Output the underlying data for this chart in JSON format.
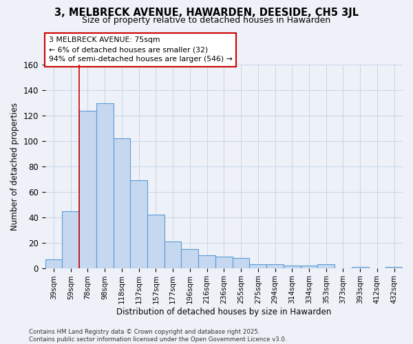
{
  "title": "3, MELBRECK AVENUE, HAWARDEN, DEESIDE, CH5 3JL",
  "subtitle": "Size of property relative to detached houses in Hawarden",
  "xlabel": "Distribution of detached houses by size in Hawarden",
  "ylabel": "Number of detached properties",
  "footer_line1": "Contains HM Land Registry data © Crown copyright and database right 2025.",
  "footer_line2": "Contains public sector information licensed under the Open Government Licence v3.0.",
  "categories": [
    "39sqm",
    "59sqm",
    "78sqm",
    "98sqm",
    "118sqm",
    "137sqm",
    "157sqm",
    "177sqm",
    "196sqm",
    "216sqm",
    "236sqm",
    "255sqm",
    "275sqm",
    "294sqm",
    "314sqm",
    "334sqm",
    "353sqm",
    "373sqm",
    "393sqm",
    "412sqm",
    "432sqm"
  ],
  "values": [
    7,
    45,
    124,
    130,
    102,
    69,
    42,
    21,
    15,
    10,
    9,
    8,
    3,
    3,
    2,
    2,
    3,
    0,
    1,
    0,
    1
  ],
  "bar_color": "#c5d8f0",
  "bar_edge_color": "#5b9bd5",
  "grid_color": "#c8d4e8",
  "background_color": "#eef2f8",
  "vline_x": 1.5,
  "vline_color": "#cc0000",
  "annotation_line1": "3 MELBRECK AVENUE: 75sqm",
  "annotation_line2": "← 6% of detached houses are smaller (32)",
  "annotation_line3": "94% of semi-detached houses are larger (546) →",
  "annotation_box_color": "#ffffff",
  "annotation_box_edge": "#cc0000",
  "ylim": [
    0,
    160
  ],
  "yticks": [
    0,
    20,
    40,
    60,
    80,
    100,
    120,
    140,
    160
  ]
}
